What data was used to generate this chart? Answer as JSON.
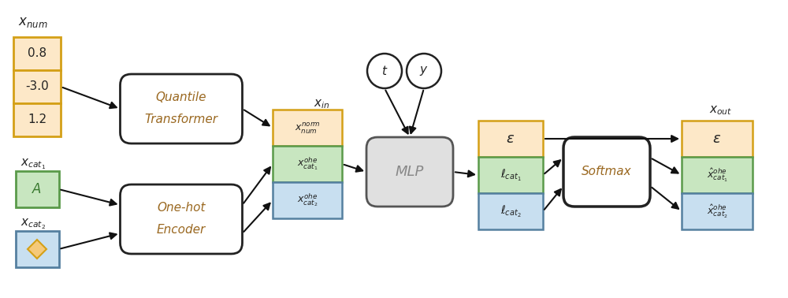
{
  "bg_color": "#ffffff",
  "orange_fill": "#f5c97a",
  "orange_border": "#d4a017",
  "orange_light_fill": "#fde8c8",
  "green_fill": "#c8e6c0",
  "green_border": "#5a9a4a",
  "blue_fill": "#c8dff0",
  "blue_border": "#5580a0",
  "box_border": "#222222",
  "mlp_fill": "#e0e0e0",
  "softmax_fill": "#ffffff",
  "text_color": "#222222",
  "quantile_color": "#9a6820",
  "ohe_color": "#9a6820",
  "mlp_color": "#888888",
  "softmax_color": "#9a6820",
  "arrow_color": "#111111",
  "num_values": [
    "0.8",
    "-3.0",
    "1.2"
  ],
  "xnum_label": "$x_{num}$",
  "xcat1_label": "$x_{cat_1}$",
  "xcat2_label": "$x_{cat_2}$",
  "xin_label": "$x_{in}$",
  "xout_label": "$x_{out}$",
  "qt_line1": "Quantile",
  "qt_line2": "Transformer",
  "ohe_line1": "One-hot",
  "ohe_line2": "Encoder",
  "mlp_label": "MLP",
  "softmax_label": "Softmax",
  "t_label": "$t$",
  "y_label": "$y$",
  "eps_label": "$\\epsilon$",
  "lcat1_label": "$\\ell_{cat_1}$",
  "lcat2_label": "$\\ell_{cat_2}$",
  "xnorm_label": "$x_{num}^{norm}$",
  "xcat1ohe_label": "$x_{cat_1}^{ohe}$",
  "xcat2ohe_label": "$x_{cat_2}^{ohe}$",
  "xhat_cat1_label": "$\\hat{x}_{cat_1}^{ohe}$",
  "xhat_cat2_label": "$\\hat{x}_{cat_2}^{ohe}$"
}
